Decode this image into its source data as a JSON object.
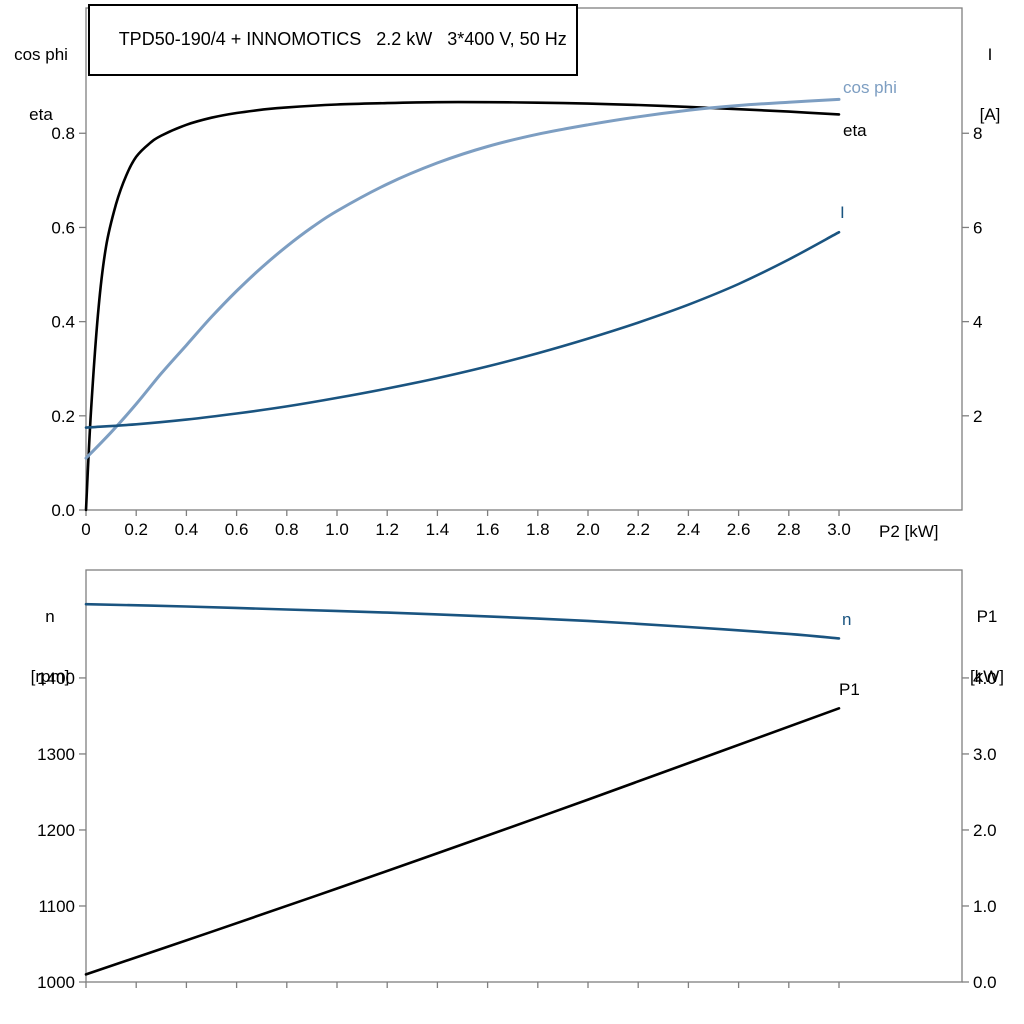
{
  "colors": {
    "black": "#000000",
    "light_blue": "#7d9ec2",
    "dark_blue": "#1a5480",
    "frame": "#7f7f7f"
  },
  "chart_data": [
    {
      "id": "top",
      "type": "line",
      "title": "TPD50-190/4 + INNOMOTICS   2.2 kW   3*400 V, 50 Hz",
      "x_axis": {
        "label": "P2 [kW]",
        "min": 0,
        "max": 3.49,
        "ticks": [
          0,
          0.2,
          0.4,
          0.6,
          0.8,
          1.0,
          1.2,
          1.4,
          1.6,
          1.8,
          2.0,
          2.2,
          2.4,
          2.6,
          2.8,
          3.0
        ],
        "tick_labels": [
          "0",
          "0.2",
          "0.4",
          "0.6",
          "0.8",
          "1.0",
          "1.2",
          "1.4",
          "1.6",
          "1.8",
          "2.0",
          "2.2",
          "2.4",
          "2.6",
          "2.8",
          "3.0"
        ]
      },
      "y_left": {
        "label_lines": [
          "cos phi",
          "eta"
        ],
        "min": 0,
        "max": 1.066,
        "ticks": [
          0.0,
          0.2,
          0.4,
          0.6,
          0.8
        ],
        "tick_labels": [
          "0.0",
          "0.2",
          "0.4",
          "0.6",
          "0.8"
        ]
      },
      "y_right": {
        "label_lines": [
          "I",
          "[A]"
        ],
        "min": 0,
        "max": 10.66,
        "ticks": [
          2,
          4,
          6,
          8
        ],
        "tick_labels": [
          "2",
          "4",
          "6",
          "8"
        ]
      },
      "series": [
        {
          "name": "eta",
          "label_text": "eta",
          "axis": "left",
          "color": "black",
          "width": 2.6,
          "x": [
            0,
            0.02,
            0.05,
            0.08,
            0.12,
            0.16,
            0.2,
            0.25,
            0.3,
            0.4,
            0.5,
            0.6,
            0.7,
            0.8,
            1.0,
            1.2,
            1.4,
            1.6,
            1.8,
            2.0,
            2.2,
            2.4,
            2.6,
            2.8,
            3.0
          ],
          "y": [
            0,
            0.21,
            0.43,
            0.56,
            0.65,
            0.71,
            0.75,
            0.777,
            0.795,
            0.818,
            0.833,
            0.843,
            0.85,
            0.855,
            0.861,
            0.864,
            0.866,
            0.866,
            0.865,
            0.863,
            0.86,
            0.856,
            0.851,
            0.846,
            0.84
          ]
        },
        {
          "name": "cos phi",
          "label_text": "cos phi",
          "axis": "left",
          "color": "light_blue",
          "width": 3,
          "x": [
            0,
            0.1,
            0.2,
            0.3,
            0.4,
            0.5,
            0.6,
            0.7,
            0.8,
            0.9,
            1.0,
            1.2,
            1.4,
            1.6,
            1.8,
            2.0,
            2.2,
            2.4,
            2.6,
            2.8,
            3.0
          ],
          "y": [
            0.11,
            0.165,
            0.225,
            0.29,
            0.35,
            0.41,
            0.465,
            0.515,
            0.56,
            0.6,
            0.635,
            0.692,
            0.737,
            0.772,
            0.798,
            0.818,
            0.835,
            0.849,
            0.859,
            0.866,
            0.872
          ]
        },
        {
          "name": "I",
          "label_text": "I",
          "axis": "right",
          "color": "dark_blue",
          "width": 2.6,
          "x": [
            0,
            0.2,
            0.4,
            0.6,
            0.8,
            1.0,
            1.2,
            1.4,
            1.6,
            1.8,
            2.0,
            2.2,
            2.4,
            2.6,
            2.8,
            3.0
          ],
          "y": [
            1.75,
            1.82,
            1.92,
            2.05,
            2.2,
            2.38,
            2.58,
            2.8,
            3.05,
            3.33,
            3.64,
            3.98,
            4.36,
            4.8,
            5.32,
            5.9
          ]
        }
      ]
    },
    {
      "id": "bottom",
      "type": "line",
      "title": "",
      "x_axis": {
        "label": "",
        "min": 0,
        "max": 3.49,
        "ticks": [
          0,
          0.2,
          0.4,
          0.6,
          0.8,
          1.0,
          1.2,
          1.4,
          1.6,
          1.8,
          2.0,
          2.2,
          2.4,
          2.6,
          2.8,
          3.0
        ]
      },
      "y_left": {
        "label_lines": [
          "n",
          "[rpm]"
        ],
        "min": 1000,
        "max": 1542,
        "ticks": [
          1000,
          1100,
          1200,
          1300,
          1400
        ],
        "tick_labels": [
          "1000",
          "1100",
          "1200",
          "1300",
          "1400"
        ]
      },
      "y_right": {
        "label_lines": [
          "P1",
          "[kW]"
        ],
        "min": 0,
        "max": 5.42,
        "ticks": [
          0.0,
          1.0,
          2.0,
          3.0,
          4.0
        ],
        "tick_labels": [
          "0.0",
          "1.0",
          "2.0",
          "3.0",
          "4.0"
        ]
      },
      "series": [
        {
          "name": "n",
          "label_text": "n",
          "axis": "left",
          "color": "dark_blue",
          "width": 2.6,
          "x": [
            0,
            0.4,
            0.8,
            1.2,
            1.6,
            2.0,
            2.4,
            2.8,
            3.0
          ],
          "y": [
            1497,
            1494,
            1490,
            1486,
            1481,
            1475,
            1467,
            1458,
            1452
          ]
        },
        {
          "name": "P1",
          "label_text": "P1",
          "axis": "right",
          "color": "black",
          "width": 2.6,
          "x": [
            0,
            0.5,
            1.0,
            1.5,
            2.0,
            2.5,
            3.0
          ],
          "y": [
            0.1,
            0.66,
            1.23,
            1.81,
            2.4,
            3.0,
            3.6
          ]
        }
      ]
    }
  ]
}
